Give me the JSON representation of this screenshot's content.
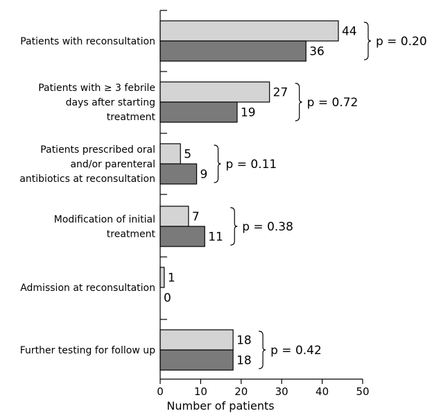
{
  "chart_data": {
    "type": "bar",
    "orientation": "horizontal",
    "xlabel": "Number of patients",
    "xlim": [
      0,
      50
    ],
    "xticks": [
      0,
      10,
      20,
      30,
      40,
      50
    ],
    "grid": false,
    "colors": {
      "series_a": "#d4d4d4",
      "series_b": "#7a7a7a",
      "stroke": "#000000"
    },
    "categories": [
      {
        "lines": [
          "Patients with reconsultation"
        ],
        "a": 44,
        "b": 36,
        "a_label": "44",
        "b_label": "36",
        "p": "p = 0.20"
      },
      {
        "lines": [
          "Patients with ≥ 3 febrile",
          "days after starting",
          "treatment"
        ],
        "a": 27,
        "b": 19,
        "a_label": "27",
        "b_label": "19",
        "p": "p = 0.72"
      },
      {
        "lines": [
          "Patients prescribed oral",
          "and/or parenteral",
          "antibiotics at reconsultation"
        ],
        "a": 5,
        "b": 9,
        "a_label": "5",
        "b_label": "9",
        "p": "p = 0.11"
      },
      {
        "lines": [
          "Modification of initial",
          "treatment"
        ],
        "a": 7,
        "b": 11,
        "a_label": "7",
        "b_label": "11",
        "p": "p = 0.38"
      },
      {
        "lines": [
          "Admission at reconsultation"
        ],
        "a": 1,
        "b": 0,
        "a_label": "1",
        "b_label": "0",
        "p": ""
      },
      {
        "lines": [
          "Further testing for follow up"
        ],
        "a": 18,
        "b": 18,
        "a_label": "18",
        "b_label": "18",
        "p": "p = 0.42"
      }
    ]
  }
}
